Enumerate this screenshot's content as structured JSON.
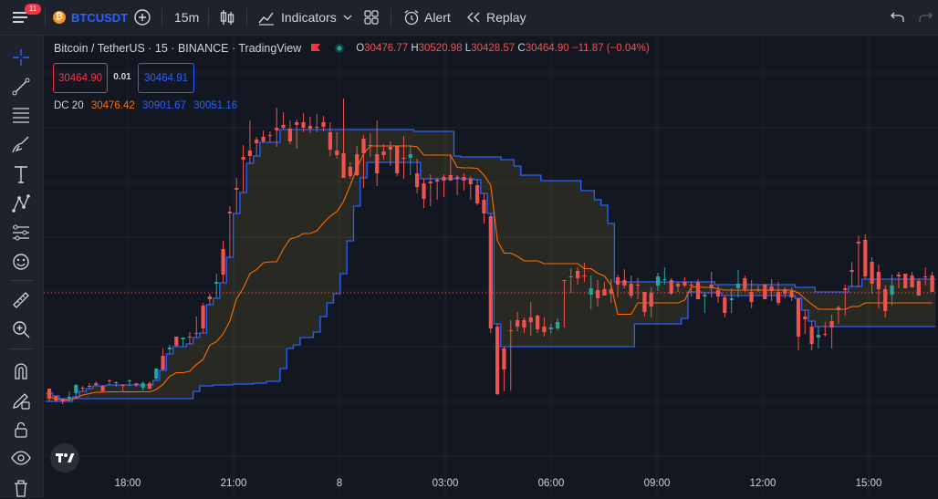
{
  "toolbar": {
    "notification_count": "11",
    "symbol": "BTCUSDT",
    "interval": "15m",
    "indicators_label": "Indicators",
    "alert_label": "Alert",
    "replay_label": "Replay"
  },
  "legend": {
    "title": "Bitcoin / TetherUS · 15 · BINANCE · TradingView",
    "open_key": "O",
    "open": "30476.77",
    "high_key": "H",
    "high": "30520.98",
    "low_key": "L",
    "low": "30428.57",
    "close_key": "C",
    "close": "30464.90",
    "change": "−11.87 (−0.04%)"
  },
  "price_boxes": {
    "sell": "30464.90",
    "spread": "0.01",
    "buy": "30464.91"
  },
  "indicator": {
    "name": "DC 20",
    "basis": "30476.42",
    "upper": "30901.67",
    "lower": "30051.16"
  },
  "x_axis": {
    "labels": [
      "18:00",
      "21:00",
      "8",
      "03:00",
      "06:00",
      "09:00",
      "12:00",
      "15:00"
    ]
  },
  "colors": {
    "up": "#26a69a",
    "down": "#ef5350",
    "channel_band": "#2962ff",
    "basis_line": "#ff6d00",
    "background": "#131722"
  },
  "sidebar_icons": [
    "crosshair-icon",
    "trend-line-icon",
    "fib-icon",
    "brush-icon",
    "text-icon",
    "pattern-icon",
    "forecast-icon",
    "emoji-icon",
    "ruler-icon",
    "zoom-icon",
    "magnet-icon",
    "lock-draw-icon",
    "lock-icon",
    "eye-icon",
    "trash-icon"
  ],
  "chart_data": {
    "type": "candlestick",
    "interval": "15m",
    "series": [
      {
        "name": "Bitcoin / TetherUS",
        "kind": "ohlc"
      },
      {
        "name": "DC 20",
        "kind": "donchian_channel"
      }
    ],
    "last_bar": {
      "open": 30476.77,
      "high": 30520.98,
      "low": 30428.57,
      "close": 30464.9
    },
    "donchian_last": {
      "basis": 30476.42,
      "upper": 30901.67,
      "lower": 30051.16
    },
    "candles_visual": [
      [
        426,
        440,
        431,
        437
      ],
      [
        434,
        441,
        434,
        439
      ],
      [
        437,
        443,
        437,
        440
      ],
      [
        437,
        440,
        429,
        435
      ],
      [
        431,
        435,
        421,
        422
      ],
      [
        425,
        429,
        423,
        426
      ],
      [
        423,
        426,
        420,
        424
      ],
      [
        420,
        423,
        418,
        422
      ],
      [
        423,
        429,
        422,
        429
      ],
      [
        417,
        422,
        416,
        418
      ],
      [
        419,
        424,
        418,
        419
      ],
      [
        422,
        429,
        421,
        423
      ],
      [
        418,
        423,
        416,
        417
      ],
      [
        420,
        424,
        420,
        422
      ],
      [
        425,
        428,
        418,
        420
      ],
      [
        420,
        427,
        418,
        426
      ],
      [
        415,
        417,
        404,
        404
      ],
      [
        390,
        406,
        382,
        405
      ],
      [
        383,
        388,
        378,
        381
      ],
      [
        369,
        380,
        369,
        379
      ],
      [
        372,
        380,
        370,
        370
      ],
      [
        369,
        377,
        364,
        370
      ],
      [
        365,
        370,
        347,
        365
      ],
      [
        335,
        365,
        332,
        360
      ],
      [
        325,
        334,
        322,
        328
      ],
      [
        311,
        327,
        300,
        309
      ],
      [
        273,
        310,
        264,
        301
      ],
      [
        232,
        282,
        226,
        234
      ],
      [
        206,
        234,
        195,
        208
      ],
      [
        172,
        211,
        159,
        175
      ],
      [
        165,
        179,
        132,
        171
      ],
      [
        153,
        171,
        150,
        157
      ],
      [
        150,
        156,
        143,
        155
      ],
      [
        148,
        156,
        144,
        149
      ],
      [
        140,
        161,
        118,
        143
      ],
      [
        137,
        142,
        123,
        140
      ],
      [
        141,
        158,
        132,
        155
      ],
      [
        134,
        163,
        131,
        137
      ],
      [
        134,
        145,
        124,
        140
      ],
      [
        138,
        146,
        128,
        141
      ],
      [
        139,
        145,
        125,
        139
      ],
      [
        134,
        144,
        127,
        139
      ],
      [
        145,
        171,
        134,
        164
      ],
      [
        165,
        174,
        145,
        170
      ],
      [
        168,
        194,
        108,
        195
      ],
      [
        183,
        196,
        178,
        193
      ],
      [
        169,
        193,
        160,
        192
      ],
      [
        152,
        206,
        148,
        168
      ],
      [
        159,
        172,
        146,
        159
      ],
      [
        169,
        204,
        132,
        190
      ],
      [
        166,
        175,
        158,
        170
      ],
      [
        161,
        182,
        155,
        164
      ],
      [
        160,
        193,
        159,
        190
      ],
      [
        173,
        196,
        149,
        174
      ],
      [
        173,
        192,
        159,
        169
      ],
      [
        190,
        212,
        174,
        205
      ],
      [
        201,
        228,
        196,
        218
      ],
      [
        199,
        226,
        191,
        201
      ],
      [
        197,
        219,
        195,
        199
      ],
      [
        194,
        216,
        191,
        198
      ],
      [
        192,
        198,
        170,
        198
      ],
      [
        194,
        214,
        192,
        196
      ],
      [
        194,
        209,
        190,
        198
      ],
      [
        196,
        219,
        193,
        202
      ],
      [
        203,
        225,
        197,
        223
      ],
      [
        219,
        245,
        212,
        234
      ],
      [
        237,
        365,
        234,
        360
      ],
      [
        358,
        433,
        355,
        432
      ],
      [
        382,
        429,
        380,
        405
      ],
      [
        362,
        428,
        351,
        362
      ],
      [
        351,
        363,
        342,
        358
      ],
      [
        351,
        365,
        348,
        359
      ],
      [
        348,
        368,
        331,
        353
      ],
      [
        346,
        365,
        345,
        361
      ],
      [
        358,
        369,
        348,
        364
      ],
      [
        361,
        366,
        355,
        359
      ],
      [
        360,
        362,
        349,
        353
      ],
      [
        307,
        359,
        307,
        307
      ],
      [
        303,
        321,
        294,
        304
      ],
      [
        297,
        312,
        293,
        305
      ],
      [
        302,
        309,
        288,
        302
      ],
      [
        323,
        339,
        302,
        316
      ],
      [
        318,
        336,
        307,
        327
      ],
      [
        317,
        324,
        309,
        324
      ],
      [
        317,
        332,
        306,
        322
      ],
      [
        304,
        326,
        301,
        312
      ],
      [
        307,
        316,
        295,
        313
      ],
      [
        311,
        327,
        302,
        324
      ],
      [
        312,
        328,
        305,
        312
      ],
      [
        320,
        347,
        320,
        342
      ],
      [
        321,
        348,
        315,
        336
      ],
      [
        313,
        319,
        299,
        303
      ],
      [
        307,
        312,
        293,
        306
      ],
      [
        307,
        323,
        305,
        322
      ],
      [
        311,
        320,
        309,
        314
      ],
      [
        309,
        315,
        304,
        313
      ],
      [
        312,
        325,
        309,
        313
      ],
      [
        309,
        328,
        306,
        328
      ],
      [
        325,
        343,
        321,
        323
      ],
      [
        312,
        326,
        298,
        316
      ],
      [
        318,
        332,
        313,
        325
      ],
      [
        326,
        348,
        324,
        343
      ],
      [
        329,
        343,
        316,
        327
      ],
      [
        316,
        326,
        296,
        311
      ],
      [
        305,
        320,
        302,
        317
      ],
      [
        320,
        338,
        307,
        331
      ],
      [
        317,
        320,
        313,
        318
      ],
      [
        312,
        328,
        311,
        328
      ],
      [
        314,
        330,
        306,
        319
      ],
      [
        320,
        335,
        309,
        332
      ],
      [
        317,
        327,
        315,
        322
      ],
      [
        319,
        330,
        315,
        326
      ],
      [
        327,
        384,
        327,
        369
      ],
      [
        347,
        366,
        340,
        350
      ],
      [
        358,
        384,
        352,
        377
      ],
      [
        370,
        382,
        358,
        367
      ],
      [
        366,
        369,
        353,
        366
      ],
      [
        352,
        382,
        345,
        359
      ],
      [
        337,
        355,
        335,
        340
      ],
      [
        316,
        346,
        312,
        318
      ],
      [
        296,
        314,
        287,
        298
      ],
      [
        265,
        315,
        258,
        267
      ],
      [
        263,
        306,
        257,
        303
      ],
      [
        287,
        322,
        282,
        311
      ],
      [
        298,
        338,
        290,
        317
      ],
      [
        317,
        348,
        313,
        341
      ],
      [
        323,
        335,
        301,
        313
      ],
      [
        301,
        316,
        298,
        303
      ],
      [
        300,
        316,
        301,
        316
      ],
      [
        302,
        313,
        298,
        315
      ],
      [
        308,
        319,
        305,
        324
      ],
      [
        303,
        313,
        293,
        303
      ],
      [
        302,
        315,
        298,
        320
      ]
    ]
  }
}
